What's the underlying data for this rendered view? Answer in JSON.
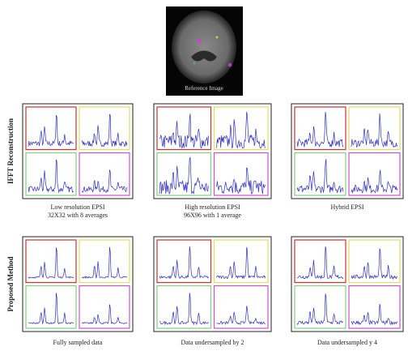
{
  "reference_image": {
    "caption": "Reference Image"
  },
  "rows": [
    {
      "label": "IFFT Reconstruction",
      "panels": [
        {
          "caption": [
            "Low resolution EPSI",
            "32X32 with 8 averages"
          ]
        },
        {
          "caption": [
            "High resolution EPSI",
            "96X96 with 1 average"
          ]
        },
        {
          "caption": [
            "Hybrid EPSI"
          ]
        }
      ]
    },
    {
      "label": "Proposed Method",
      "panels": [
        {
          "caption": [
            "Fully sampled data"
          ]
        },
        {
          "caption": [
            "Data undersampled by 2"
          ]
        },
        {
          "caption": [
            "Data undersampled y 4"
          ]
        }
      ]
    }
  ]
}
